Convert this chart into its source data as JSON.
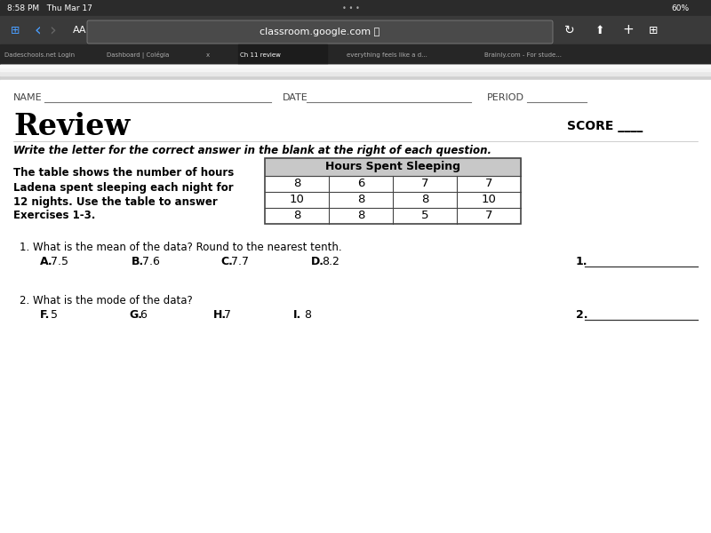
{
  "bg_color": "#ffffff",
  "status_bar_color": "#2c2c2c",
  "browser_bar_color": "#3a3a3a",
  "tab_bar_color": "#1e1e1e",
  "content_bg": "#ffffff",
  "browser_url": "classroom.google.com",
  "browser_time": "8:58 PM   Thu Mar 17",
  "browser_battery": "60%",
  "name_label": "NAME",
  "date_label": "DATE",
  "period_label": "PERIOD",
  "title": "Review",
  "score_label": "SCORE ____",
  "instruction": "Write the letter for the correct answer in the blank at the right of each question.",
  "problem_text_lines": [
    "The table shows the number of hours",
    "Ladena spent sleeping each night for",
    "12 nights. Use the table to answer",
    "Exercises 1-3."
  ],
  "table_title": "Hours Spent Sleeping",
  "table_data": [
    [
      8,
      6,
      7,
      7
    ],
    [
      10,
      8,
      8,
      10
    ],
    [
      8,
      8,
      5,
      7
    ]
  ],
  "q1_text": "1. What is the mean of the data? Round to the nearest tenth.",
  "q1_choices": [
    "A.",
    "7.5",
    "B.",
    "7.6",
    "C.",
    "7.7",
    "D.",
    "8.2"
  ],
  "q1_choice_x": [
    45,
    57,
    148,
    160,
    248,
    260,
    350,
    362
  ],
  "q1_num": "1.",
  "q2_text": "2. What is the mode of the data?",
  "q2_choices": [
    "F.",
    "5",
    "G.",
    "6",
    "H.",
    "7",
    "I.",
    "8"
  ],
  "q2_choice_x": [
    45,
    57,
    145,
    157,
    240,
    252,
    330,
    342
  ],
  "q2_num": "2.",
  "header_gray": "#c8c8c8",
  "table_border": "#444444",
  "text_color": "#000000",
  "gray_text": "#555555",
  "tab_labels": [
    "Dadeschools.net Login",
    "Dashboard | Colégia",
    "x",
    "Ch 11 review",
    "everything feels like a d...",
    "Brainly.com - For stude..."
  ],
  "tab_x_positions": [
    5,
    120,
    232,
    270,
    390,
    545
  ],
  "active_tab": "Ch 11 review"
}
